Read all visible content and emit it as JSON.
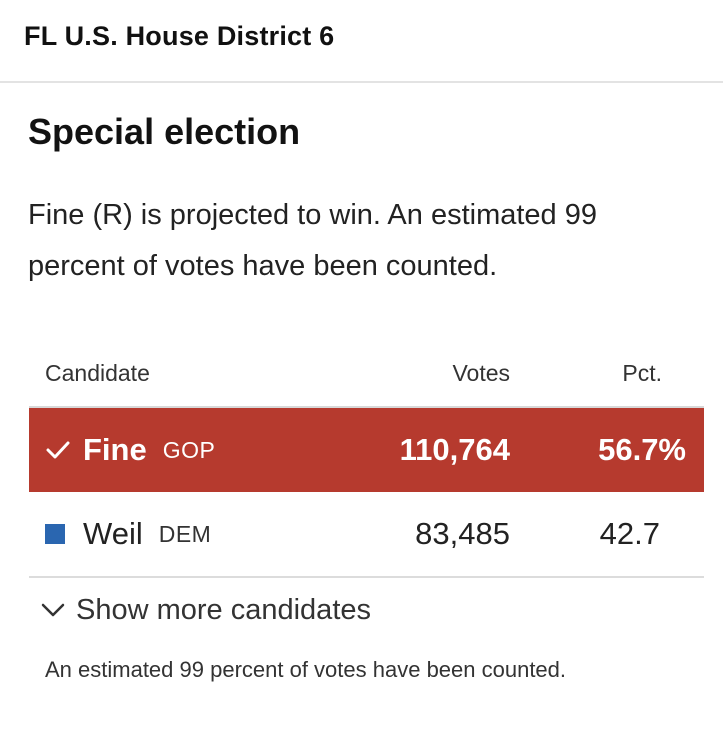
{
  "district": {
    "title": "FL U.S. House District 6"
  },
  "election": {
    "title": "Special election",
    "summary": "Fine (R) is projected to win. An estimated 99 percent of votes have been counted."
  },
  "table": {
    "headers": {
      "candidate": "Candidate",
      "votes": "Votes",
      "pct": "Pct."
    },
    "rows": [
      {
        "name": "Fine",
        "party": "GOP",
        "votes": "110,764",
        "pct": "56.7%",
        "winner": true,
        "icon": "check-icon",
        "color": "#b63a2e"
      },
      {
        "name": "Weil",
        "party": "DEM",
        "votes": "83,485",
        "pct": "42.7",
        "winner": false,
        "icon": "square-icon",
        "color": "#2a66b0"
      }
    ]
  },
  "show_more": {
    "label": "Show more candidates",
    "icon": "chevron-down-icon"
  },
  "footnote": "An estimated 99 percent of votes have been counted."
}
